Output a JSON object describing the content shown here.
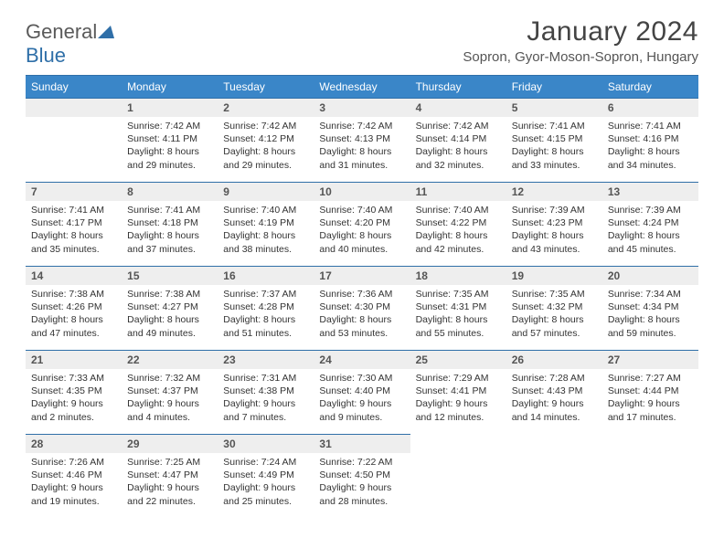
{
  "brand": {
    "part1": "General",
    "part2": "Blue"
  },
  "title": "January 2024",
  "location": "Sopron, Gyor-Moson-Sopron, Hungary",
  "colors": {
    "header_bg": "#3a86c8",
    "header_border": "#2f6fa8",
    "daynum_bg": "#eeeeee",
    "text": "#333333",
    "brand_gray": "#5a5a5a",
    "brand_blue": "#2f6fa8"
  },
  "weekdays": [
    "Sunday",
    "Monday",
    "Tuesday",
    "Wednesday",
    "Thursday",
    "Friday",
    "Saturday"
  ],
  "weeks": [
    [
      null,
      {
        "n": "1",
        "sr": "7:42 AM",
        "ss": "4:11 PM",
        "dl": "8 hours and 29 minutes."
      },
      {
        "n": "2",
        "sr": "7:42 AM",
        "ss": "4:12 PM",
        "dl": "8 hours and 29 minutes."
      },
      {
        "n": "3",
        "sr": "7:42 AM",
        "ss": "4:13 PM",
        "dl": "8 hours and 31 minutes."
      },
      {
        "n": "4",
        "sr": "7:42 AM",
        "ss": "4:14 PM",
        "dl": "8 hours and 32 minutes."
      },
      {
        "n": "5",
        "sr": "7:41 AM",
        "ss": "4:15 PM",
        "dl": "8 hours and 33 minutes."
      },
      {
        "n": "6",
        "sr": "7:41 AM",
        "ss": "4:16 PM",
        "dl": "8 hours and 34 minutes."
      }
    ],
    [
      {
        "n": "7",
        "sr": "7:41 AM",
        "ss": "4:17 PM",
        "dl": "8 hours and 35 minutes."
      },
      {
        "n": "8",
        "sr": "7:41 AM",
        "ss": "4:18 PM",
        "dl": "8 hours and 37 minutes."
      },
      {
        "n": "9",
        "sr": "7:40 AM",
        "ss": "4:19 PM",
        "dl": "8 hours and 38 minutes."
      },
      {
        "n": "10",
        "sr": "7:40 AM",
        "ss": "4:20 PM",
        "dl": "8 hours and 40 minutes."
      },
      {
        "n": "11",
        "sr": "7:40 AM",
        "ss": "4:22 PM",
        "dl": "8 hours and 42 minutes."
      },
      {
        "n": "12",
        "sr": "7:39 AM",
        "ss": "4:23 PM",
        "dl": "8 hours and 43 minutes."
      },
      {
        "n": "13",
        "sr": "7:39 AM",
        "ss": "4:24 PM",
        "dl": "8 hours and 45 minutes."
      }
    ],
    [
      {
        "n": "14",
        "sr": "7:38 AM",
        "ss": "4:26 PM",
        "dl": "8 hours and 47 minutes."
      },
      {
        "n": "15",
        "sr": "7:38 AM",
        "ss": "4:27 PM",
        "dl": "8 hours and 49 minutes."
      },
      {
        "n": "16",
        "sr": "7:37 AM",
        "ss": "4:28 PM",
        "dl": "8 hours and 51 minutes."
      },
      {
        "n": "17",
        "sr": "7:36 AM",
        "ss": "4:30 PM",
        "dl": "8 hours and 53 minutes."
      },
      {
        "n": "18",
        "sr": "7:35 AM",
        "ss": "4:31 PM",
        "dl": "8 hours and 55 minutes."
      },
      {
        "n": "19",
        "sr": "7:35 AM",
        "ss": "4:32 PM",
        "dl": "8 hours and 57 minutes."
      },
      {
        "n": "20",
        "sr": "7:34 AM",
        "ss": "4:34 PM",
        "dl": "8 hours and 59 minutes."
      }
    ],
    [
      {
        "n": "21",
        "sr": "7:33 AM",
        "ss": "4:35 PM",
        "dl": "9 hours and 2 minutes."
      },
      {
        "n": "22",
        "sr": "7:32 AM",
        "ss": "4:37 PM",
        "dl": "9 hours and 4 minutes."
      },
      {
        "n": "23",
        "sr": "7:31 AM",
        "ss": "4:38 PM",
        "dl": "9 hours and 7 minutes."
      },
      {
        "n": "24",
        "sr": "7:30 AM",
        "ss": "4:40 PM",
        "dl": "9 hours and 9 minutes."
      },
      {
        "n": "25",
        "sr": "7:29 AM",
        "ss": "4:41 PM",
        "dl": "9 hours and 12 minutes."
      },
      {
        "n": "26",
        "sr": "7:28 AM",
        "ss": "4:43 PM",
        "dl": "9 hours and 14 minutes."
      },
      {
        "n": "27",
        "sr": "7:27 AM",
        "ss": "4:44 PM",
        "dl": "9 hours and 17 minutes."
      }
    ],
    [
      {
        "n": "28",
        "sr": "7:26 AM",
        "ss": "4:46 PM",
        "dl": "9 hours and 19 minutes."
      },
      {
        "n": "29",
        "sr": "7:25 AM",
        "ss": "4:47 PM",
        "dl": "9 hours and 22 minutes."
      },
      {
        "n": "30",
        "sr": "7:24 AM",
        "ss": "4:49 PM",
        "dl": "9 hours and 25 minutes."
      },
      {
        "n": "31",
        "sr": "7:22 AM",
        "ss": "4:50 PM",
        "dl": "9 hours and 28 minutes."
      },
      null,
      null,
      null
    ]
  ],
  "labels": {
    "sunrise": "Sunrise:",
    "sunset": "Sunset:",
    "daylight": "Daylight:"
  }
}
